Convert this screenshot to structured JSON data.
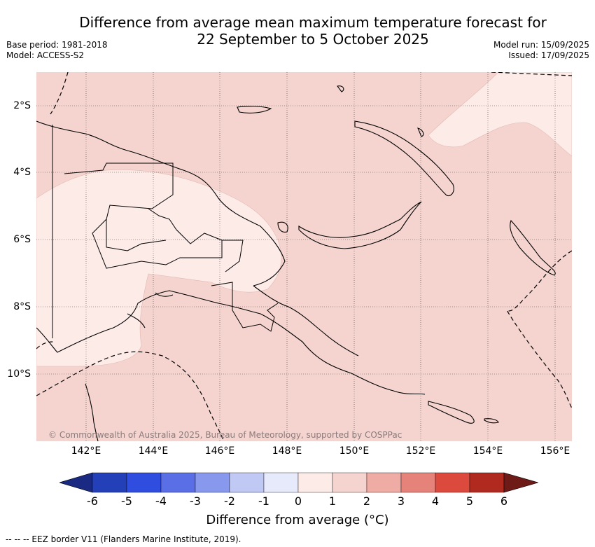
{
  "title": {
    "line1": "Difference from average mean maximum temperature forecast for",
    "line2": "22 September to 5 October 2025"
  },
  "meta": {
    "base_period": "Base period: 1981-2018",
    "model": "Model: ACCESS-S2",
    "model_run": "Model run: 15/09/2025",
    "issued": "Issued: 17/09/2025"
  },
  "map": {
    "copyright": "© Commonwealth of Australia 2025, Bureau of Meteorology, supported by COSPPac",
    "lon_ticks": [
      "142°E",
      "144°E",
      "146°E",
      "148°E",
      "150°E",
      "152°E",
      "154°E",
      "156°E"
    ],
    "lat_ticks": [
      "2°S",
      "4°S",
      "6°S",
      "8°S",
      "10°S"
    ],
    "colors": {
      "anomaly_0_1": "#fdebe8",
      "anomaly_1_2": "#f5d4cf",
      "coast": "#000000"
    }
  },
  "colorbar": {
    "ticks": [
      "-6",
      "-5",
      "-4",
      "-3",
      "-2",
      "-1",
      "0",
      "1",
      "2",
      "3",
      "4",
      "5",
      "6"
    ],
    "label": "Difference from average (°C)",
    "colors": [
      "#1a2a82",
      "#2440b8",
      "#2f4ee0",
      "#5a6fe6",
      "#8898ec",
      "#c0c8f4",
      "#e6eafb",
      "#fdebe8",
      "#f5d4cf",
      "#efaca5",
      "#e5827a",
      "#dc4a3e",
      "#b02a20",
      "#6e1a16"
    ]
  },
  "footer": {
    "eez": "--  --  -- EEZ border V11 (Flanders Marine Institute, 2019)."
  }
}
